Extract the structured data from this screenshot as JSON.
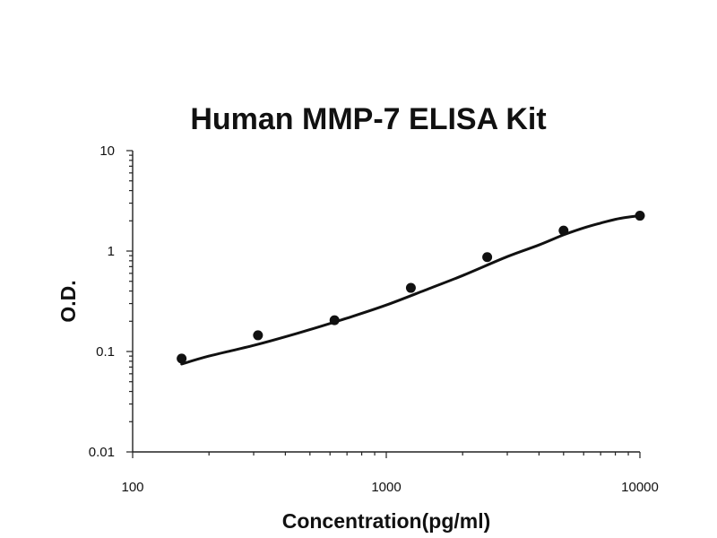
{
  "chart_data": {
    "type": "scatter",
    "title": "Human MMP-7 ELISA Kit",
    "xlabel": "Concentration(pg/ml)",
    "ylabel": "O.D.",
    "x_scale": "log",
    "y_scale": "log",
    "xlim": [
      100,
      10000
    ],
    "ylim": [
      0.01,
      10
    ],
    "x_ticks": [
      "100",
      "1000",
      "10000"
    ],
    "y_ticks": [
      "10",
      "1",
      "0.1",
      "0.01"
    ],
    "grid": false,
    "legend": "none",
    "points": {
      "x": [
        156,
        312,
        625,
        1250,
        2500,
        5000,
        10000
      ],
      "y": [
        0.085,
        0.145,
        0.205,
        0.43,
        0.87,
        1.6,
        2.25
      ]
    },
    "fit_curve": {
      "x": [
        156,
        200,
        300,
        400,
        500,
        700,
        1000,
        1500,
        2000,
        3000,
        4000,
        5000,
        6000,
        7000,
        8000,
        9000,
        10000
      ],
      "y": [
        0.075,
        0.09,
        0.115,
        0.14,
        0.165,
        0.215,
        0.29,
        0.43,
        0.57,
        0.88,
        1.15,
        1.45,
        1.7,
        1.9,
        2.07,
        2.18,
        2.25
      ]
    }
  }
}
